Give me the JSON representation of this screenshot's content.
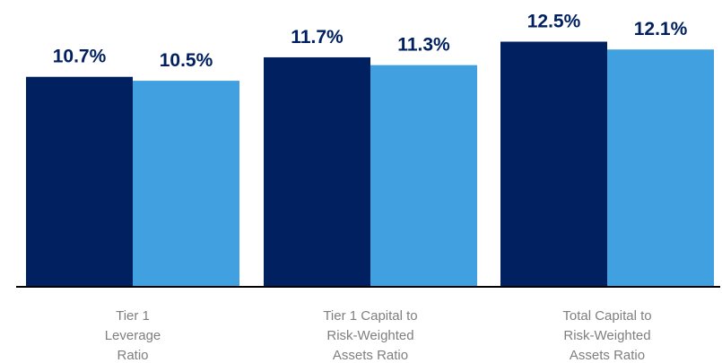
{
  "chart_data": {
    "type": "bar",
    "categories": [
      [
        "Tier 1",
        "Leverage",
        "Ratio"
      ],
      [
        "Tier 1 Capital to",
        "Risk-Weighted",
        "Assets Ratio"
      ],
      [
        "Total Capital to",
        "Risk-Weighted",
        "Assets Ratio"
      ]
    ],
    "series": [
      {
        "values": [
          10.7,
          11.7,
          12.5
        ],
        "labels": [
          "10.7%",
          "11.7%",
          "12.5%"
        ],
        "color": "#002060"
      },
      {
        "values": [
          10.5,
          11.3,
          12.1
        ],
        "labels": [
          "10.5%",
          "11.3%",
          "12.1%"
        ],
        "color": "#41a0e0"
      }
    ],
    "ylim": [
      0,
      14
    ],
    "grid": false,
    "legend": "none",
    "axis_color": "#000000"
  }
}
